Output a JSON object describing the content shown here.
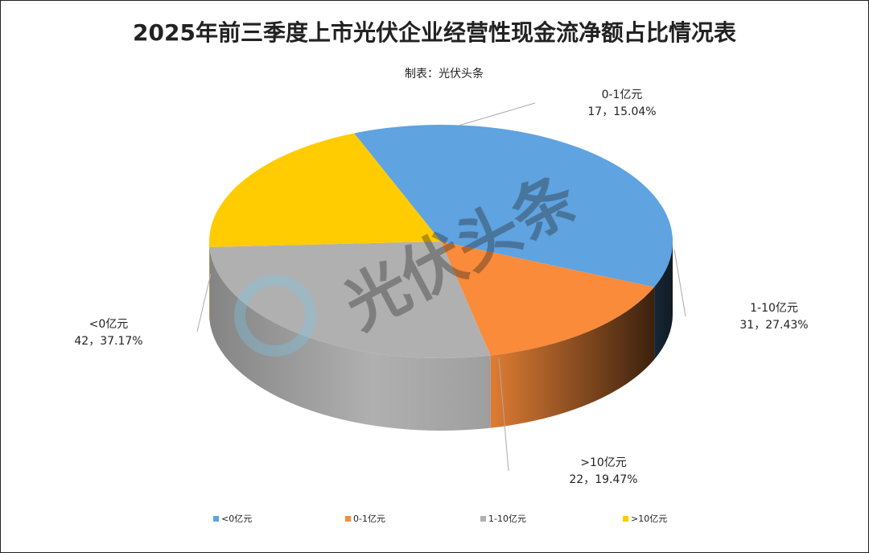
{
  "chart_data": {
    "type": "pie3d",
    "title": "2025年前三季度上市光伏企业经营性现金流净额占比情况表",
    "subtitle": "制表：光伏头条",
    "watermark": "光伏头条",
    "categories": [
      "<0亿元",
      "0-1亿元",
      "1-10亿元",
      ">10亿元"
    ],
    "values": [
      42,
      17,
      31,
      22
    ],
    "value_labels": [
      "42，37.17%",
      "17，15.04%",
      "31，27.43%",
      "22，19.47%"
    ],
    "colors": [
      "#5fa3e0",
      "#f98b3a",
      "#b0b0b0",
      "#fecc00"
    ],
    "legend": "bottom"
  }
}
